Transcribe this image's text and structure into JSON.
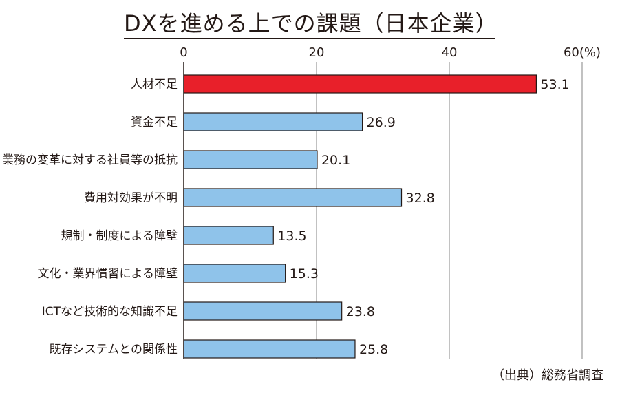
{
  "chart_data": {
    "type": "bar",
    "orientation": "horizontal",
    "title": "DXを進める上での課題（日本企業）",
    "categories": [
      "人材不足",
      "資金不足",
      "業務の変革に対する社員等の抵抗",
      "費用対効果が不明",
      "規制・制度による障壁",
      "文化・業界慣習による障壁",
      "ICTなど技術的な知識不足",
      "既存システムとの関係性"
    ],
    "values": [
      53.1,
      26.9,
      20.1,
      32.8,
      13.5,
      15.3,
      23.8,
      25.8
    ],
    "value_labels": [
      "53.1",
      "26.9",
      "20.1",
      "32.8",
      "13.5",
      "15.3",
      "23.8",
      "25.8"
    ],
    "xticks": [
      "0",
      "20",
      "40",
      "60(%)"
    ],
    "xtick_values": [
      0,
      20,
      40,
      60
    ],
    "xlim": [
      0,
      60
    ],
    "grid": true,
    "highlight_index": 0,
    "colors": {
      "highlight": "#e8202a",
      "default": "#8fc3ea",
      "bar_border": "#231815",
      "grid": "#a0a0a0",
      "highlight_text": "#e8202a",
      "text": "#231815"
    }
  },
  "source": "（出典）総務省調査"
}
